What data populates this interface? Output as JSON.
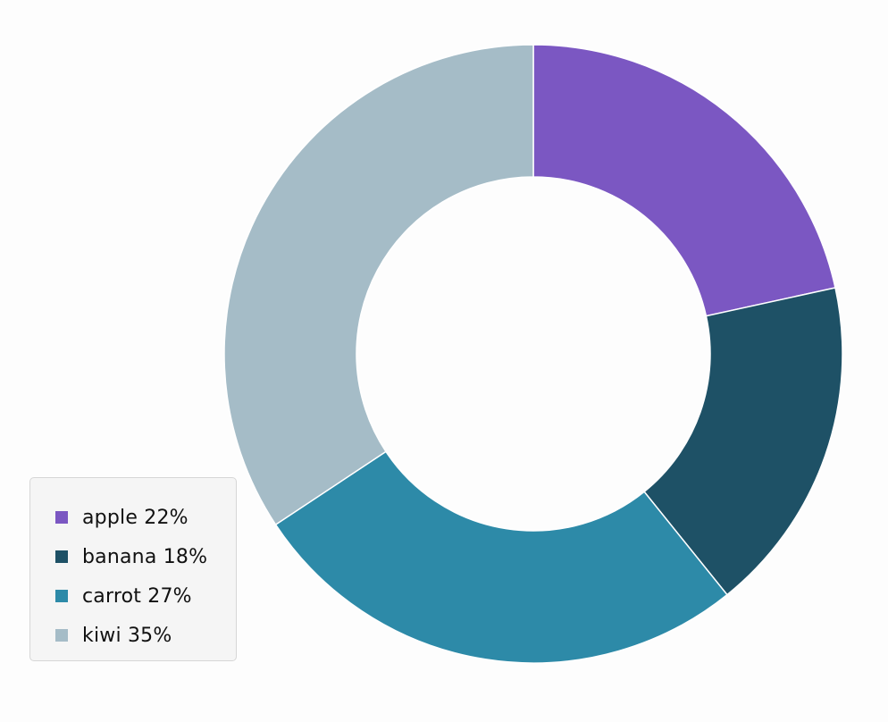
{
  "chart_data": {
    "type": "pie",
    "variant": "donut",
    "categories": [
      "apple",
      "banana",
      "carrot",
      "kiwi"
    ],
    "values": [
      22,
      18,
      27,
      35
    ],
    "unit": "%",
    "colors": [
      "#7b57c2",
      "#1e5166",
      "#2d8aa8",
      "#a5bcc7"
    ],
    "start_angle_deg": 0,
    "direction": "clockwise",
    "legend": {
      "placement": "bottom-left",
      "items": [
        {
          "label": "apple 22%",
          "color": "#7b57c2"
        },
        {
          "label": "banana 18%",
          "color": "#1e5166"
        },
        {
          "label": "carrot 27%",
          "color": "#2d8aa8"
        },
        {
          "label": "kiwi 35%",
          "color": "#a5bcc7"
        }
      ]
    }
  }
}
